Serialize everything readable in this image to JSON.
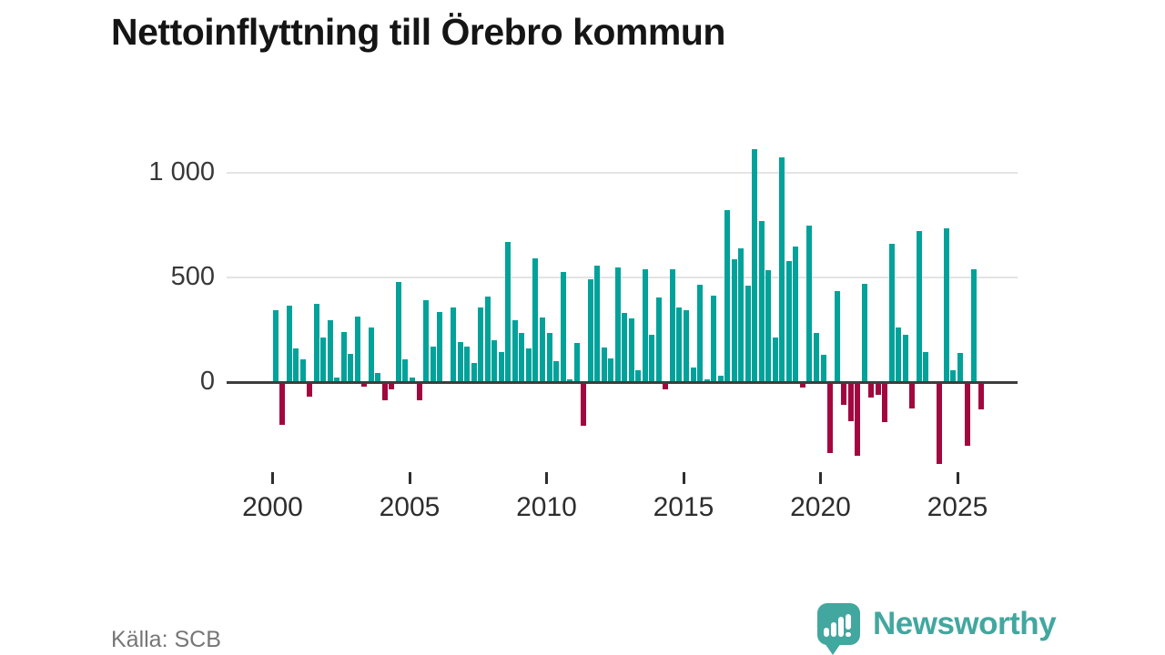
{
  "header": {
    "title": "Nettoinflyttning till Örebro kommun"
  },
  "footer": {
    "source": "Källa: SCB",
    "brand": "Newsworthy",
    "brand_color": "#42a79f",
    "brand_icon": "newsworthy-speech-bubble-chart-icon"
  },
  "chart_data": {
    "type": "bar",
    "title": "Nettoinflyttning till Örebro kommun",
    "frequency": "quarterly",
    "start_year": 2000,
    "values": [
      345,
      -205,
      365,
      160,
      110,
      -70,
      375,
      215,
      295,
      20,
      240,
      135,
      315,
      -20,
      260,
      45,
      -85,
      -35,
      480,
      110,
      20,
      -85,
      390,
      170,
      335,
      -10,
      355,
      190,
      170,
      90,
      355,
      410,
      200,
      145,
      670,
      295,
      235,
      160,
      590,
      310,
      235,
      100,
      525,
      15,
      185,
      -210,
      490,
      555,
      165,
      115,
      550,
      330,
      305,
      55,
      540,
      225,
      405,
      -35,
      540,
      355,
      345,
      70,
      465,
      15,
      415,
      30,
      820,
      585,
      640,
      460,
      1115,
      770,
      535,
      215,
      1075,
      580,
      650,
      -25,
      750,
      235,
      130,
      -340,
      435,
      -110,
      -185,
      -350,
      470,
      -75,
      -60,
      -190,
      660,
      260,
      225,
      -125,
      720,
      145,
      0,
      -390,
      735,
      55,
      140,
      -305,
      540,
      -130
    ],
    "yticks": [
      {
        "value": 0,
        "label": "0"
      },
      {
        "value": 500,
        "label": "500"
      },
      {
        "value": 1000,
        "label": "1 000"
      }
    ],
    "xticks": [
      {
        "year": 2000,
        "label": "2000"
      },
      {
        "year": 2005,
        "label": "2005"
      },
      {
        "year": 2010,
        "label": "2010"
      },
      {
        "year": 2015,
        "label": "2015"
      },
      {
        "year": 2020,
        "label": "2020"
      },
      {
        "year": 2025,
        "label": "2025"
      }
    ],
    "positive_color": "#00a29a",
    "negative_color": "#a3073f",
    "grid": true,
    "legend": "none",
    "ylim": [
      -450,
      1200
    ]
  }
}
